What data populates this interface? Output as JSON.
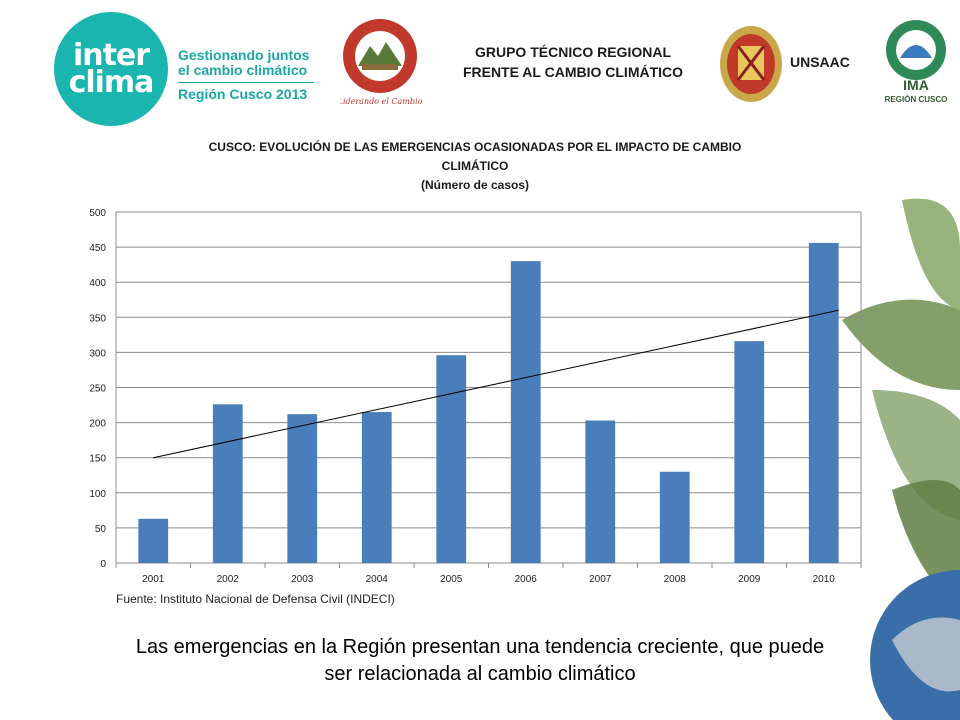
{
  "header": {
    "logo_line1": "inter",
    "logo_line2": "clima",
    "logo_tag1": "Gestionando juntos",
    "logo_tag2": "el cambio climático",
    "logo_region": "Región Cusco 2013",
    "group_line1": "GRUPO TÉCNICO REGIONAL",
    "group_line2": "FRENTE AL CAMBIO CLIMÁTICO",
    "unsaac": "UNSAAC",
    "gobierno_motto": "Liderando el Cambio",
    "ima_label": "IMA",
    "ima_region": "REGIÓN CUSCO"
  },
  "chart_data": {
    "type": "bar",
    "title_line1": "CUSCO: EVOLUCIÓN DE LAS EMERGENCIAS OCASIONADAS POR EL IMPACTO DE CAMBIO",
    "title_line2": "CLIMÁTICO",
    "subtitle": "(Número de casos)",
    "categories": [
      "2001",
      "2002",
      "2003",
      "2004",
      "2005",
      "2006",
      "2007",
      "2008",
      "2009",
      "2010"
    ],
    "values": [
      63,
      226,
      212,
      215,
      296,
      430,
      203,
      130,
      316,
      456
    ],
    "trendline": {
      "start": 150,
      "end": 360
    },
    "ylim": [
      0,
      500
    ],
    "yticks": [
      0,
      50,
      100,
      150,
      200,
      250,
      300,
      350,
      400,
      450,
      500
    ],
    "grid": true,
    "bar_color": "#4a7ebb"
  },
  "source": "Fuente: Instituto Nacional de Defensa Civil (INDECI)",
  "caption_line1": "Las emergencias en la Región presentan una tendencia creciente, que puede",
  "caption_line2": "ser relacionada al cambio climático"
}
